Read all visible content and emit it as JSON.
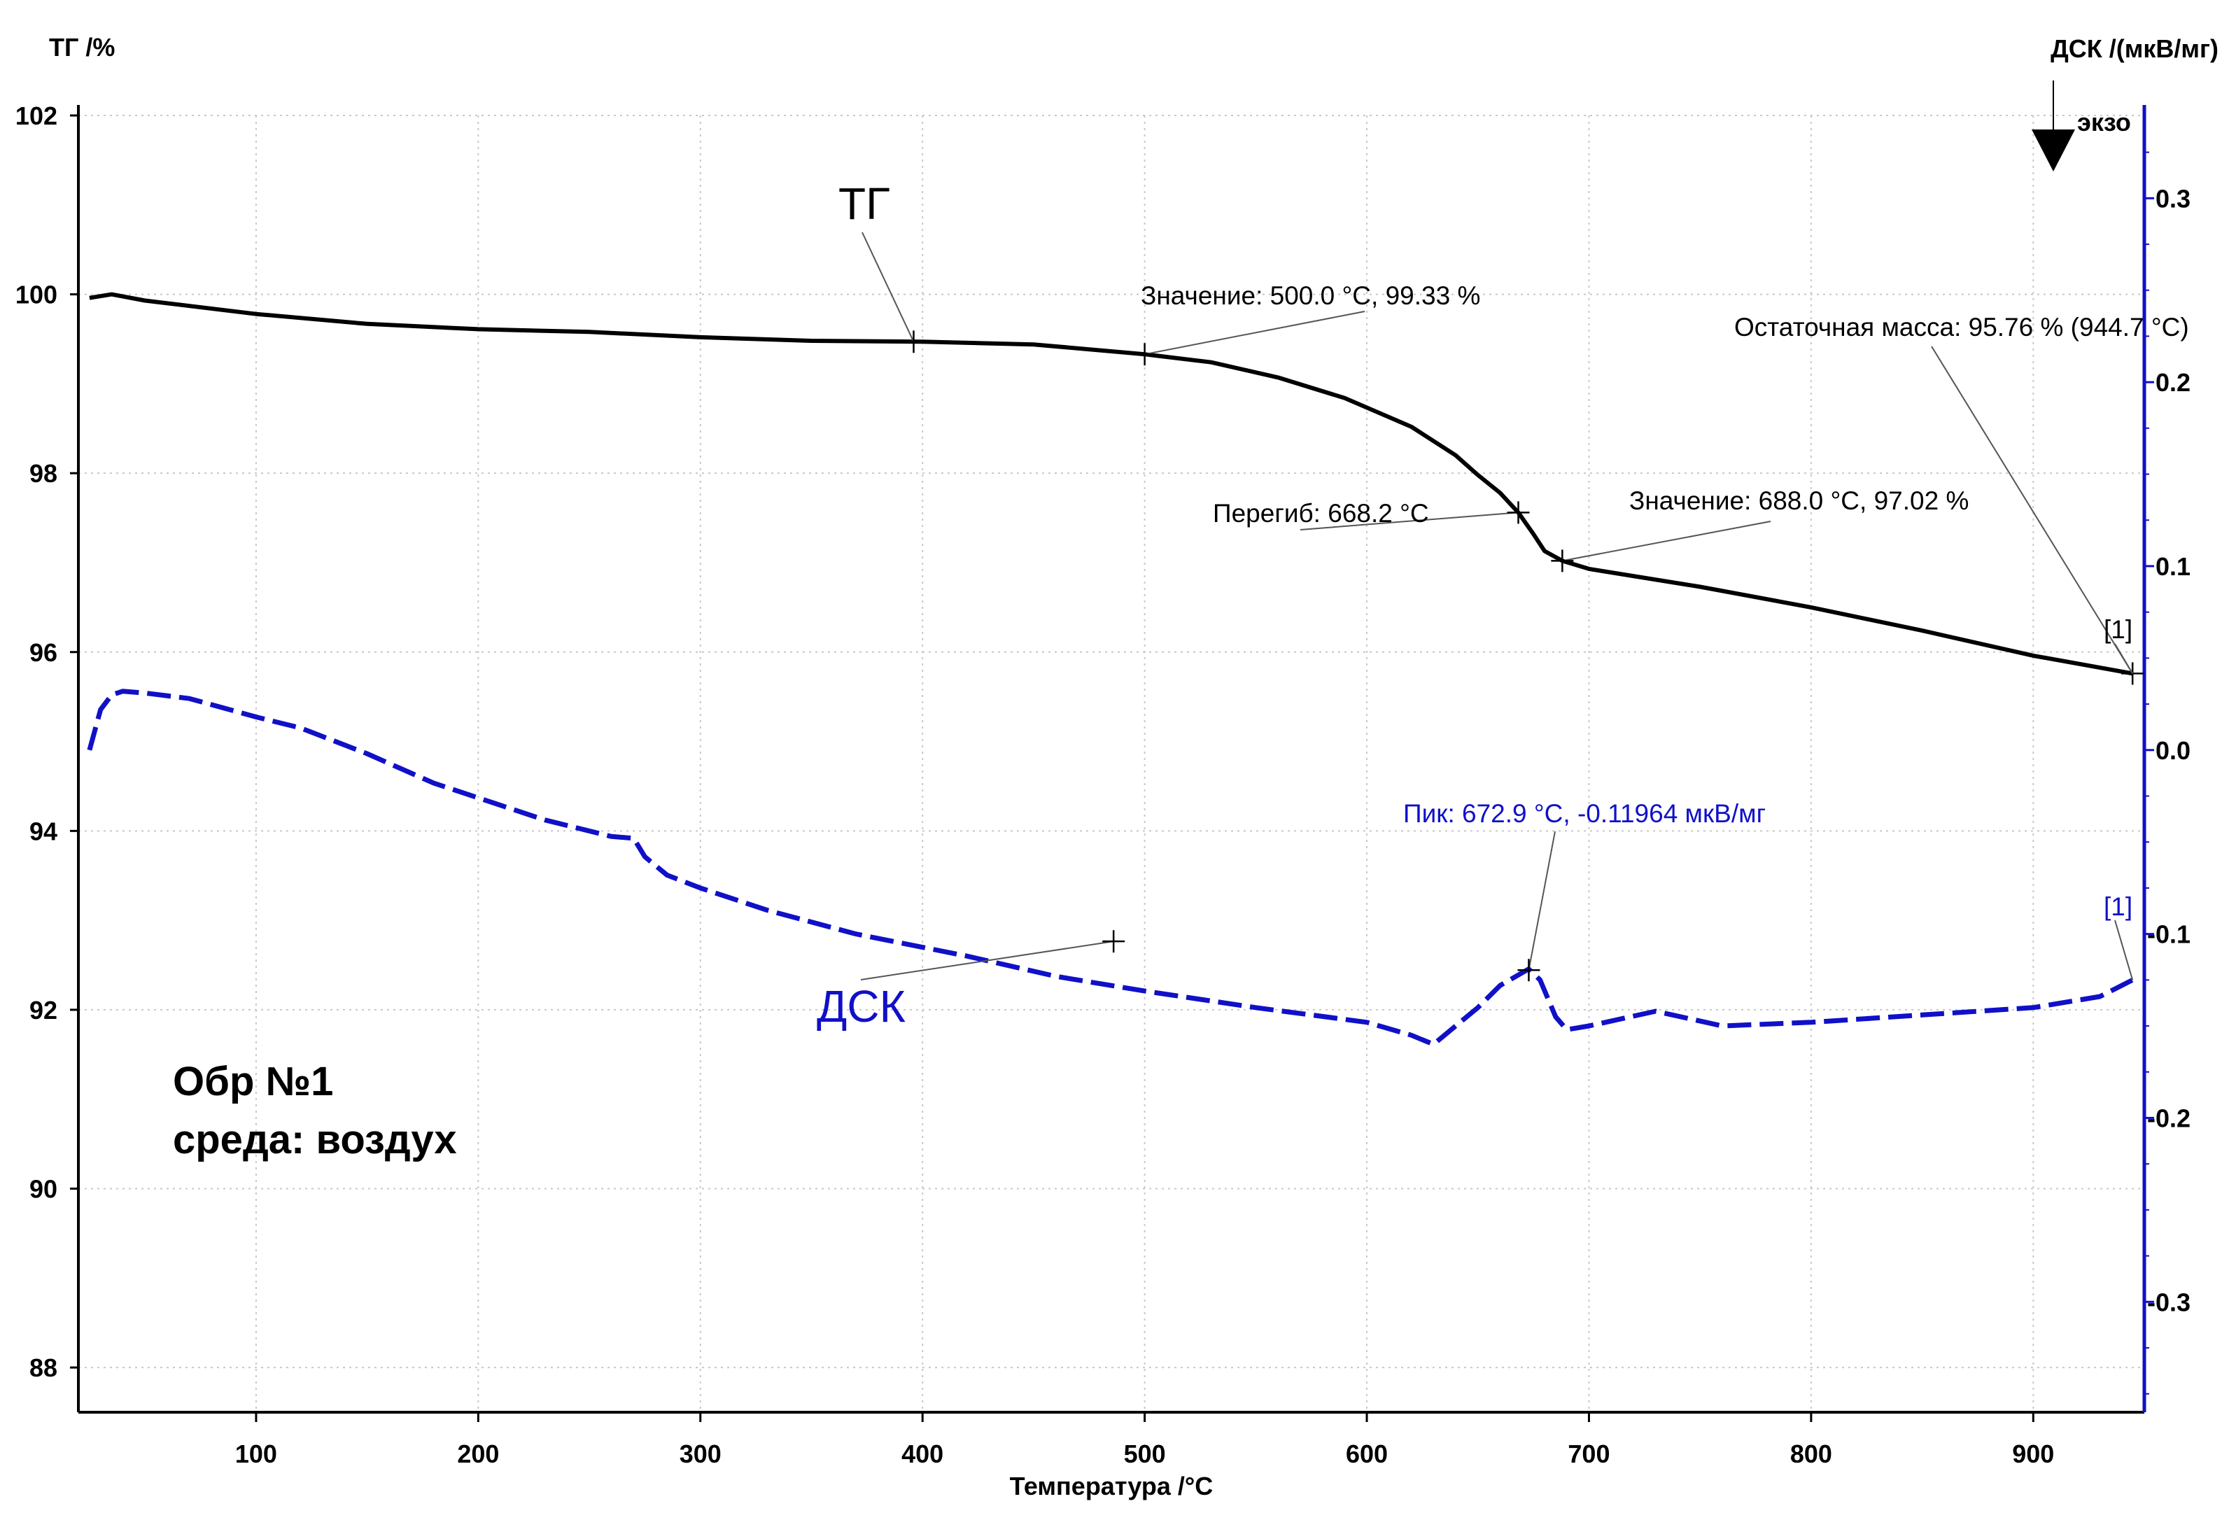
{
  "chart_data": {
    "type": "line",
    "left_axis": {
      "title": "ТГ /%",
      "ylim": [
        87.5,
        102
      ],
      "ticks": [
        102,
        100,
        98,
        96,
        94,
        92,
        90,
        88
      ]
    },
    "right_axis": {
      "title": "ДСК /(мкВ/мг)",
      "ylim": [
        -0.36,
        0.345
      ],
      "ticks": [
        "0.3",
        "0.2",
        "0.1",
        "0.0",
        "-0.1",
        "-0.2",
        "-0.3"
      ],
      "tick_values": [
        0.3,
        0.2,
        0.1,
        0.0,
        -0.1,
        -0.2,
        -0.3
      ]
    },
    "x_axis": {
      "title": "Температура /°C",
      "xlim": [
        20,
        950
      ],
      "ticks": [
        100,
        200,
        300,
        400,
        500,
        600,
        700,
        800,
        900
      ]
    },
    "exo_label": "экзо",
    "grid": true,
    "series": [
      {
        "name": "ТГ",
        "axis": "left",
        "color": "#000000",
        "style": "solid",
        "x": [
          25,
          35,
          50,
          100,
          150,
          200,
          250,
          300,
          350,
          400,
          450,
          500,
          530,
          560,
          590,
          620,
          640,
          650,
          660,
          668.2,
          675,
          680,
          688,
          700,
          750,
          800,
          850,
          900,
          944.7
        ],
        "y": [
          99.96,
          100.0,
          99.93,
          99.78,
          99.67,
          99.61,
          99.58,
          99.52,
          99.48,
          99.47,
          99.44,
          99.33,
          99.24,
          99.07,
          98.84,
          98.52,
          98.2,
          97.98,
          97.78,
          97.56,
          97.32,
          97.13,
          97.02,
          96.93,
          96.73,
          96.5,
          96.24,
          95.96,
          95.76
        ]
      },
      {
        "name": "ДСК",
        "axis": "right",
        "color": "#1010c8",
        "style": "dashed",
        "x": [
          25,
          30,
          35,
          40,
          50,
          70,
          100,
          120,
          150,
          180,
          200,
          230,
          260,
          270,
          275,
          285,
          300,
          330,
          370,
          420,
          460,
          500,
          550,
          600,
          620,
          630,
          650,
          660,
          672.9,
          678,
          685,
          690,
          700,
          730,
          760,
          800,
          850,
          900,
          930,
          944.7
        ],
        "y": [
          0.0,
          0.022,
          0.03,
          0.032,
          0.031,
          0.028,
          0.018,
          0.012,
          -0.002,
          -0.018,
          -0.026,
          -0.038,
          -0.047,
          -0.048,
          -0.058,
          -0.068,
          -0.075,
          -0.087,
          -0.1,
          -0.112,
          -0.123,
          -0.131,
          -0.14,
          -0.148,
          -0.155,
          -0.16,
          -0.14,
          -0.128,
          -0.119,
          -0.125,
          -0.145,
          -0.152,
          -0.15,
          -0.142,
          -0.15,
          -0.148,
          -0.144,
          -0.14,
          -0.134,
          -0.125
        ]
      }
    ],
    "annotations": {
      "tg_value_1": "Значение: 500.0 °C, 99.33 %",
      "tg_inflection": "Перегиб: 668.2 °C",
      "tg_value_2": "Значение: 688.0 °C, 97.02 %",
      "tg_residual": "Остаточная масса: 95.76 % (944.7 °C)",
      "tg_marker": "[1]",
      "dsc_peak": "Пик: 672.9 °C, -0.11964 мкВ/мг",
      "dsc_marker": "[1]"
    },
    "annotation_points": {
      "tg_value_1": {
        "x": 500.0,
        "y": 99.33
      },
      "tg_inflection": {
        "x": 668.2,
        "y": 97.56
      },
      "tg_value_2": {
        "x": 688.0,
        "y": 97.02
      },
      "tg_residual": {
        "x": 944.7,
        "y": 95.76
      },
      "tg_curve_label_point": {
        "x": 396,
        "y": 99.47
      },
      "dsc_peak": {
        "x": 672.9,
        "y": -0.11964
      },
      "dsc_curve_label_point": {
        "x": 486,
        "y": -0.104
      },
      "dsc_end": {
        "x": 944.7,
        "y": -0.125
      }
    },
    "curve_labels": {
      "tg": "ТГ",
      "dsc": "ДСК"
    },
    "sample_note": {
      "line1": "Обр №1",
      "line2": "среда: воздух"
    }
  }
}
